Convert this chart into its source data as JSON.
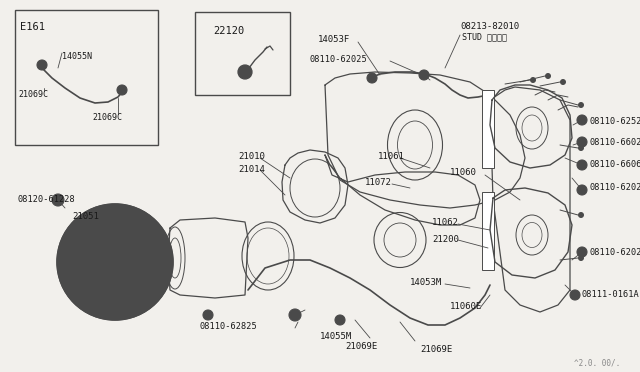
{
  "bg_color": "#f2f0ec",
  "line_color": "#4a4a4a",
  "text_color": "#1a1a1a",
  "figsize": [
    6.4,
    3.72
  ],
  "dpi": 100,
  "watermark": "^2.0. 00/.",
  "inset1_label": "E161",
  "inset2_label": "22120"
}
